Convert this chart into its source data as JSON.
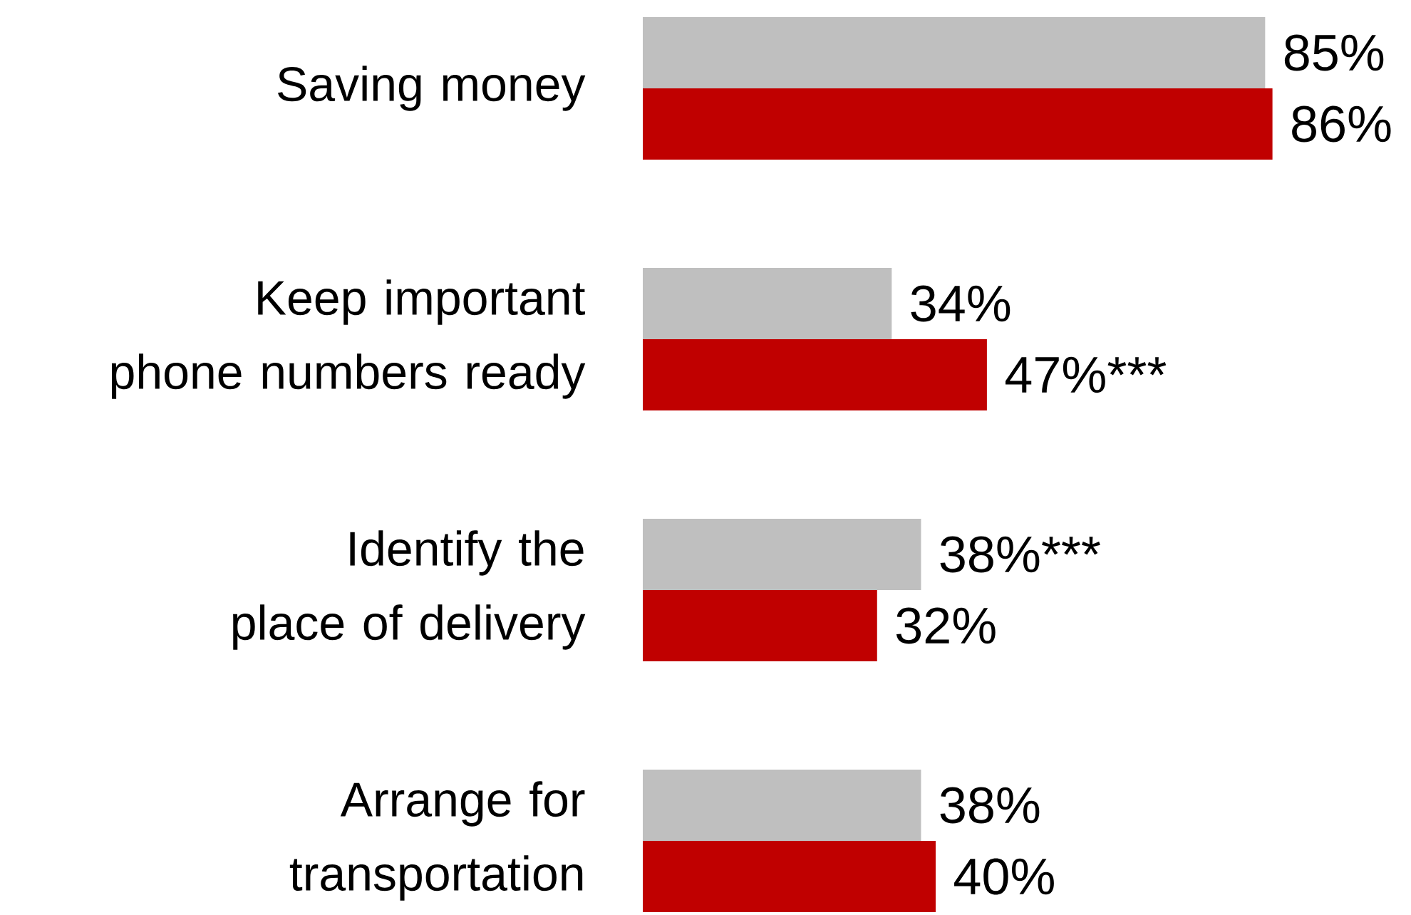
{
  "chart_data": {
    "type": "bar",
    "orientation": "horizontal",
    "categories": [
      "Saving money",
      "Keep important phone numbers ready",
      "Identify the place of delivery",
      "Arrange for transportation"
    ],
    "series": [
      {
        "color": "#bfbfbf",
        "values": [
          85,
          34,
          38,
          38
        ],
        "value_labels": [
          "85%",
          "34%",
          "38%***",
          "38%"
        ]
      },
      {
        "color": "#c00000",
        "values": [
          86,
          47,
          32,
          40
        ],
        "value_labels": [
          "86%",
          "47%***",
          "32%",
          "40%"
        ]
      }
    ]
  }
}
